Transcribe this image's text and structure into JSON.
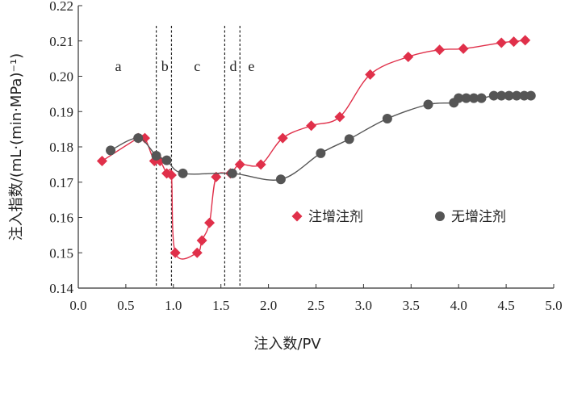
{
  "chart_data": {
    "type": "line",
    "xlabel": "注入数/PV",
    "ylabel": "注入指数/(mL·(min·MPa)⁻¹)",
    "xlim": [
      0.0,
      5.0
    ],
    "ylim": [
      0.14,
      0.22
    ],
    "x_ticks": [
      "0.0",
      "0.5",
      "1.0",
      "1.5",
      "2.0",
      "2.5",
      "3.0",
      "3.5",
      "4.0",
      "4.5",
      "5.0"
    ],
    "y_ticks": [
      "0.14",
      "0.15",
      "0.16",
      "0.17",
      "0.18",
      "0.19",
      "0.20",
      "0.21",
      "0.22"
    ],
    "grid": false,
    "legend_position": "right-middle",
    "region_boundaries": [
      0.82,
      0.98,
      1.54,
      1.7
    ],
    "region_labels": [
      {
        "text": "a",
        "x": 0.42
      },
      {
        "text": "b",
        "x": 0.91
      },
      {
        "text": "c",
        "x": 1.25
      },
      {
        "text": "d",
        "x": 1.63
      },
      {
        "text": "e",
        "x": 1.82
      }
    ],
    "series": [
      {
        "name": "注增注剂",
        "color": "#e0304a",
        "marker": "diamond",
        "x": [
          0.25,
          0.63,
          0.7,
          0.8,
          0.86,
          0.93,
          0.98,
          1.02,
          1.25,
          1.3,
          1.38,
          1.45,
          1.6,
          1.7,
          1.92,
          2.15,
          2.45,
          2.75,
          3.07,
          3.47,
          3.8,
          4.05,
          4.45,
          4.58,
          4.7
        ],
        "y": [
          0.176,
          0.1825,
          0.1825,
          0.176,
          0.176,
          0.1725,
          0.172,
          0.15,
          0.15,
          0.1535,
          0.1585,
          0.1715,
          0.1725,
          0.175,
          0.175,
          0.1825,
          0.186,
          0.1885,
          0.2005,
          0.2055,
          0.2075,
          0.2078,
          0.2095,
          0.2098,
          0.2102
        ]
      },
      {
        "name": "无增注剂",
        "color": "#555555",
        "marker": "circle",
        "x": [
          0.34,
          0.63,
          0.82,
          0.93,
          1.1,
          1.62,
          2.13,
          2.55,
          2.85,
          3.25,
          3.68,
          3.95,
          4.0,
          4.08,
          4.16,
          4.24,
          4.37,
          4.45,
          4.53,
          4.61,
          4.69,
          4.76
        ],
        "y": [
          0.179,
          0.1825,
          0.1775,
          0.1762,
          0.1725,
          0.1725,
          0.1708,
          0.1782,
          0.1822,
          0.188,
          0.192,
          0.1925,
          0.1938,
          0.1938,
          0.1938,
          0.1938,
          0.1945,
          0.1945,
          0.1945,
          0.1945,
          0.1945,
          0.1945
        ]
      }
    ]
  }
}
